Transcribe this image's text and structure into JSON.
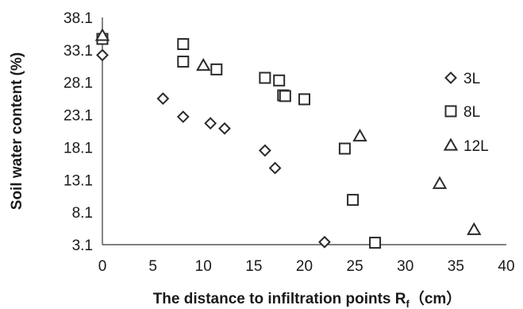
{
  "chart_data": {
    "type": "scatter",
    "xlabel": "The distance to infiltration points R",
    "xlabel_subscript": "f",
    "xlabel_unit": "（cm）",
    "ylabel": "Soil water content (%)",
    "xlim": [
      0,
      40
    ],
    "ylim": [
      3.1,
      38.1
    ],
    "xticks": [
      "0",
      "5",
      "10",
      "15",
      "20",
      "25",
      "30",
      "35",
      "40"
    ],
    "yticks": [
      "3.1",
      "8.1",
      "13.1",
      "18.1",
      "23.1",
      "28.1",
      "33.1",
      "38.1"
    ],
    "grid": false,
    "legend_position": "right",
    "series": [
      {
        "name": "3L",
        "marker": "diamond",
        "x": [
          0,
          6,
          8,
          10.7,
          12.1,
          16.1,
          17.1,
          22
        ],
        "y": [
          32.3,
          25.6,
          22.8,
          21.8,
          21.0,
          17.6,
          14.9,
          3.5
        ]
      },
      {
        "name": "8L",
        "marker": "square",
        "x": [
          0,
          8,
          8,
          11.3,
          16.1,
          17.5,
          17.9,
          18.1,
          20,
          24,
          24.8,
          27
        ],
        "y": [
          34.8,
          34.0,
          31.3,
          30.1,
          28.8,
          28.4,
          26.1,
          26.0,
          25.5,
          17.9,
          10.0,
          3.4
        ]
      },
      {
        "name": "12L",
        "marker": "triangle",
        "x": [
          0,
          10,
          25.5,
          33.4,
          36.8
        ],
        "y": [
          35.3,
          30.7,
          19.8,
          12.5,
          5.4
        ]
      }
    ]
  }
}
